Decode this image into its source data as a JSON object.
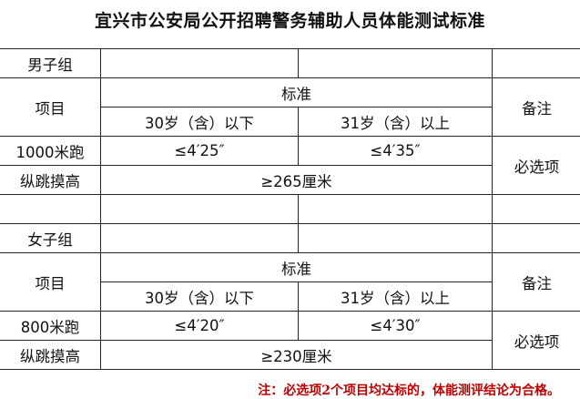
{
  "title": "宜兴市公安局公开招聘警务辅助人员体能测试标准",
  "male": {
    "group_label": "男子组",
    "item_header": "项目",
    "standard_header": "标准",
    "age_under": "30岁（含）以下",
    "age_over": "31岁（含）以上",
    "remark_header": "备注",
    "run_label": "1000米跑",
    "run_under": "≤4′25″",
    "run_over": "≤4′35″",
    "jump_label": "纵跳摸高",
    "jump_value": "≥265厘米",
    "remark": "必选项"
  },
  "female": {
    "group_label": "女子组",
    "item_header": "项目",
    "standard_header": "标准",
    "age_under": "30岁（含）以下",
    "age_over": "31岁（含）以上",
    "remark_header": "备注",
    "run_label": "800米跑",
    "run_under": "≤4′20″",
    "run_over": "≤4′30″",
    "jump_label": "纵跳摸高",
    "jump_value": "≥230厘米",
    "remark": "必选项"
  },
  "note": "注：必选项2个项目均达标的，体能测评结论为合格。",
  "colors": {
    "note": "#c00000"
  }
}
